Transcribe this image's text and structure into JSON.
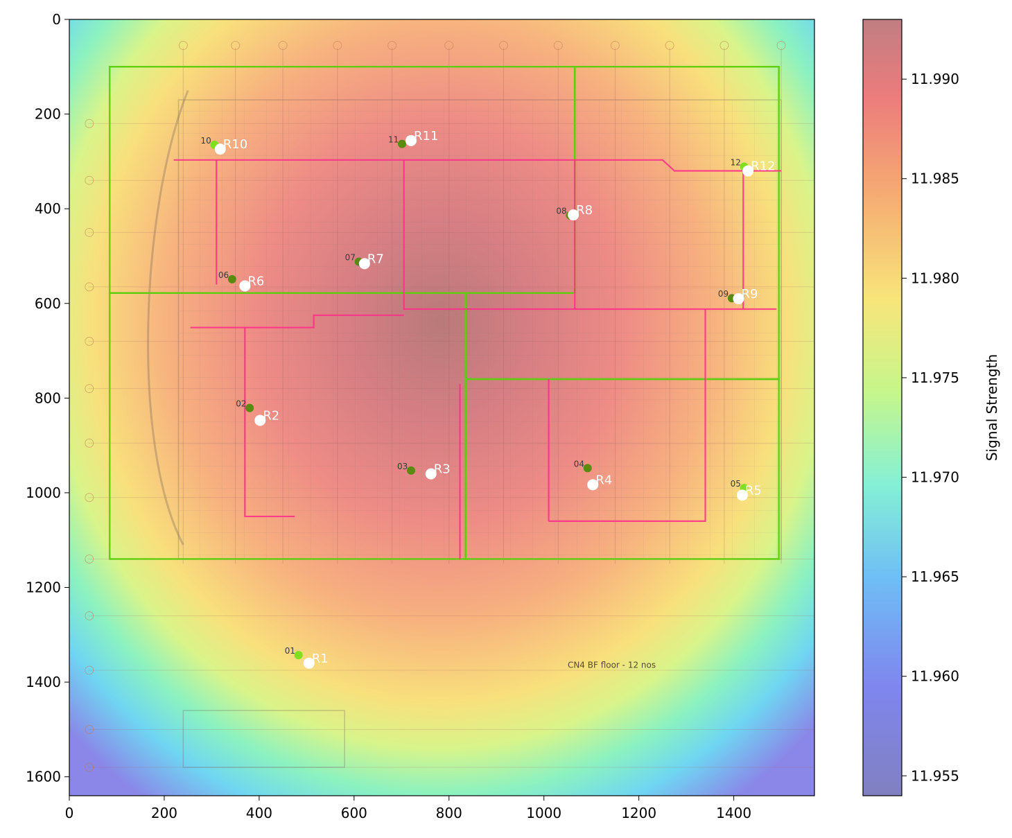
{
  "chart_data": {
    "type": "heatmap",
    "title": "",
    "xlabel": "",
    "ylabel": "",
    "xlim": [
      0,
      1570
    ],
    "ylim": [
      1640,
      0
    ],
    "x_ticks": [
      0,
      200,
      400,
      600,
      800,
      1000,
      1200,
      1400
    ],
    "y_ticks": [
      0,
      200,
      400,
      600,
      800,
      1000,
      1200,
      1400,
      1600
    ],
    "colorbar": {
      "label": "Signal Strength",
      "range": [
        11.954,
        11.993
      ],
      "ticks": [
        "11.955",
        "11.960",
        "11.965",
        "11.970",
        "11.975",
        "11.980",
        "11.985",
        "11.990"
      ],
      "colormap": "jet (semi-transparent)"
    },
    "heat_center": {
      "x": 780,
      "y": 640
    },
    "background_image_caption": "CN4 BF floor - 12 nos",
    "receivers": [
      {
        "label": "R1",
        "x": 505,
        "y": 1360
      },
      {
        "label": "R2",
        "x": 402,
        "y": 847
      },
      {
        "label": "R3",
        "x": 762,
        "y": 960
      },
      {
        "label": "R4",
        "x": 1103,
        "y": 983
      },
      {
        "label": "R5",
        "x": 1418,
        "y": 1005
      },
      {
        "label": "R6",
        "x": 370,
        "y": 563
      },
      {
        "label": "R7",
        "x": 622,
        "y": 516
      },
      {
        "label": "R8",
        "x": 1062,
        "y": 413
      },
      {
        "label": "R9",
        "x": 1410,
        "y": 590
      },
      {
        "label": "R10",
        "x": 318,
        "y": 274
      },
      {
        "label": "R11",
        "x": 720,
        "y": 256
      },
      {
        "label": "R12",
        "x": 1430,
        "y": 320
      }
    ],
    "access_points": [
      {
        "label": "01",
        "x": 483,
        "y": 1343,
        "color": "#7fe020"
      },
      {
        "label": "02",
        "x": 380,
        "y": 821,
        "color": "#5a8a10"
      },
      {
        "label": "03",
        "x": 720,
        "y": 953,
        "color": "#5a8a10"
      },
      {
        "label": "04",
        "x": 1092,
        "y": 948,
        "color": "#5a8a10"
      },
      {
        "label": "05",
        "x": 1422,
        "y": 990,
        "color": "#7fe020"
      },
      {
        "label": "06",
        "x": 343,
        "y": 549,
        "color": "#5a8a10"
      },
      {
        "label": "07",
        "x": 610,
        "y": 512,
        "color": "#5a8a10"
      },
      {
        "label": "08",
        "x": 1055,
        "y": 414,
        "color": "#5a8a10"
      },
      {
        "label": "09",
        "x": 1396,
        "y": 589,
        "color": "#5a8a10"
      },
      {
        "label": "10",
        "x": 306,
        "y": 265,
        "color": "#7fe020"
      },
      {
        "label": "11",
        "x": 701,
        "y": 263,
        "color": "#5a8a10"
      },
      {
        "label": "12",
        "x": 1422,
        "y": 311,
        "color": "#7fe020"
      }
    ],
    "zones": [
      {
        "points": [
          [
            85,
            100
          ],
          [
            1065,
            100
          ],
          [
            1065,
            578
          ],
          [
            85,
            578
          ]
        ]
      },
      {
        "points": [
          [
            1065,
            100
          ],
          [
            1495,
            100
          ],
          [
            1495,
            760
          ],
          [
            835,
            760
          ],
          [
            835,
            578
          ],
          [
            1065,
            578
          ]
        ]
      },
      {
        "points": [
          [
            85,
            578
          ],
          [
            835,
            578
          ],
          [
            835,
            1140
          ],
          [
            85,
            1140
          ]
        ]
      },
      {
        "points": [
          [
            835,
            760
          ],
          [
            1495,
            760
          ],
          [
            1495,
            1140
          ],
          [
            835,
            1140
          ]
        ]
      }
    ],
    "route_lines": [
      [
        [
          220,
          297
        ],
        [
          1250,
          297
        ],
        [
          1275,
          320
        ],
        [
          1500,
          320
        ]
      ],
      [
        [
          310,
          297
        ],
        [
          310,
          560
        ]
      ],
      [
        [
          705,
          297
        ],
        [
          705,
          612
        ],
        [
          1490,
          612
        ]
      ],
      [
        [
          1065,
          297
        ],
        [
          1065,
          612
        ]
      ],
      [
        [
          1420,
          320
        ],
        [
          1420,
          612
        ]
      ],
      [
        [
          255,
          651
        ],
        [
          515,
          651
        ],
        [
          515,
          625
        ],
        [
          705,
          625
        ]
      ],
      [
        [
          370,
          651
        ],
        [
          370,
          1050
        ],
        [
          475,
          1050
        ]
      ],
      [
        [
          823,
          770
        ],
        [
          823,
          1140
        ]
      ],
      [
        [
          1010,
          1060
        ],
        [
          1010,
          760
        ]
      ],
      [
        [
          1010,
          1060
        ],
        [
          1340,
          1060
        ],
        [
          1340,
          612
        ]
      ]
    ]
  }
}
